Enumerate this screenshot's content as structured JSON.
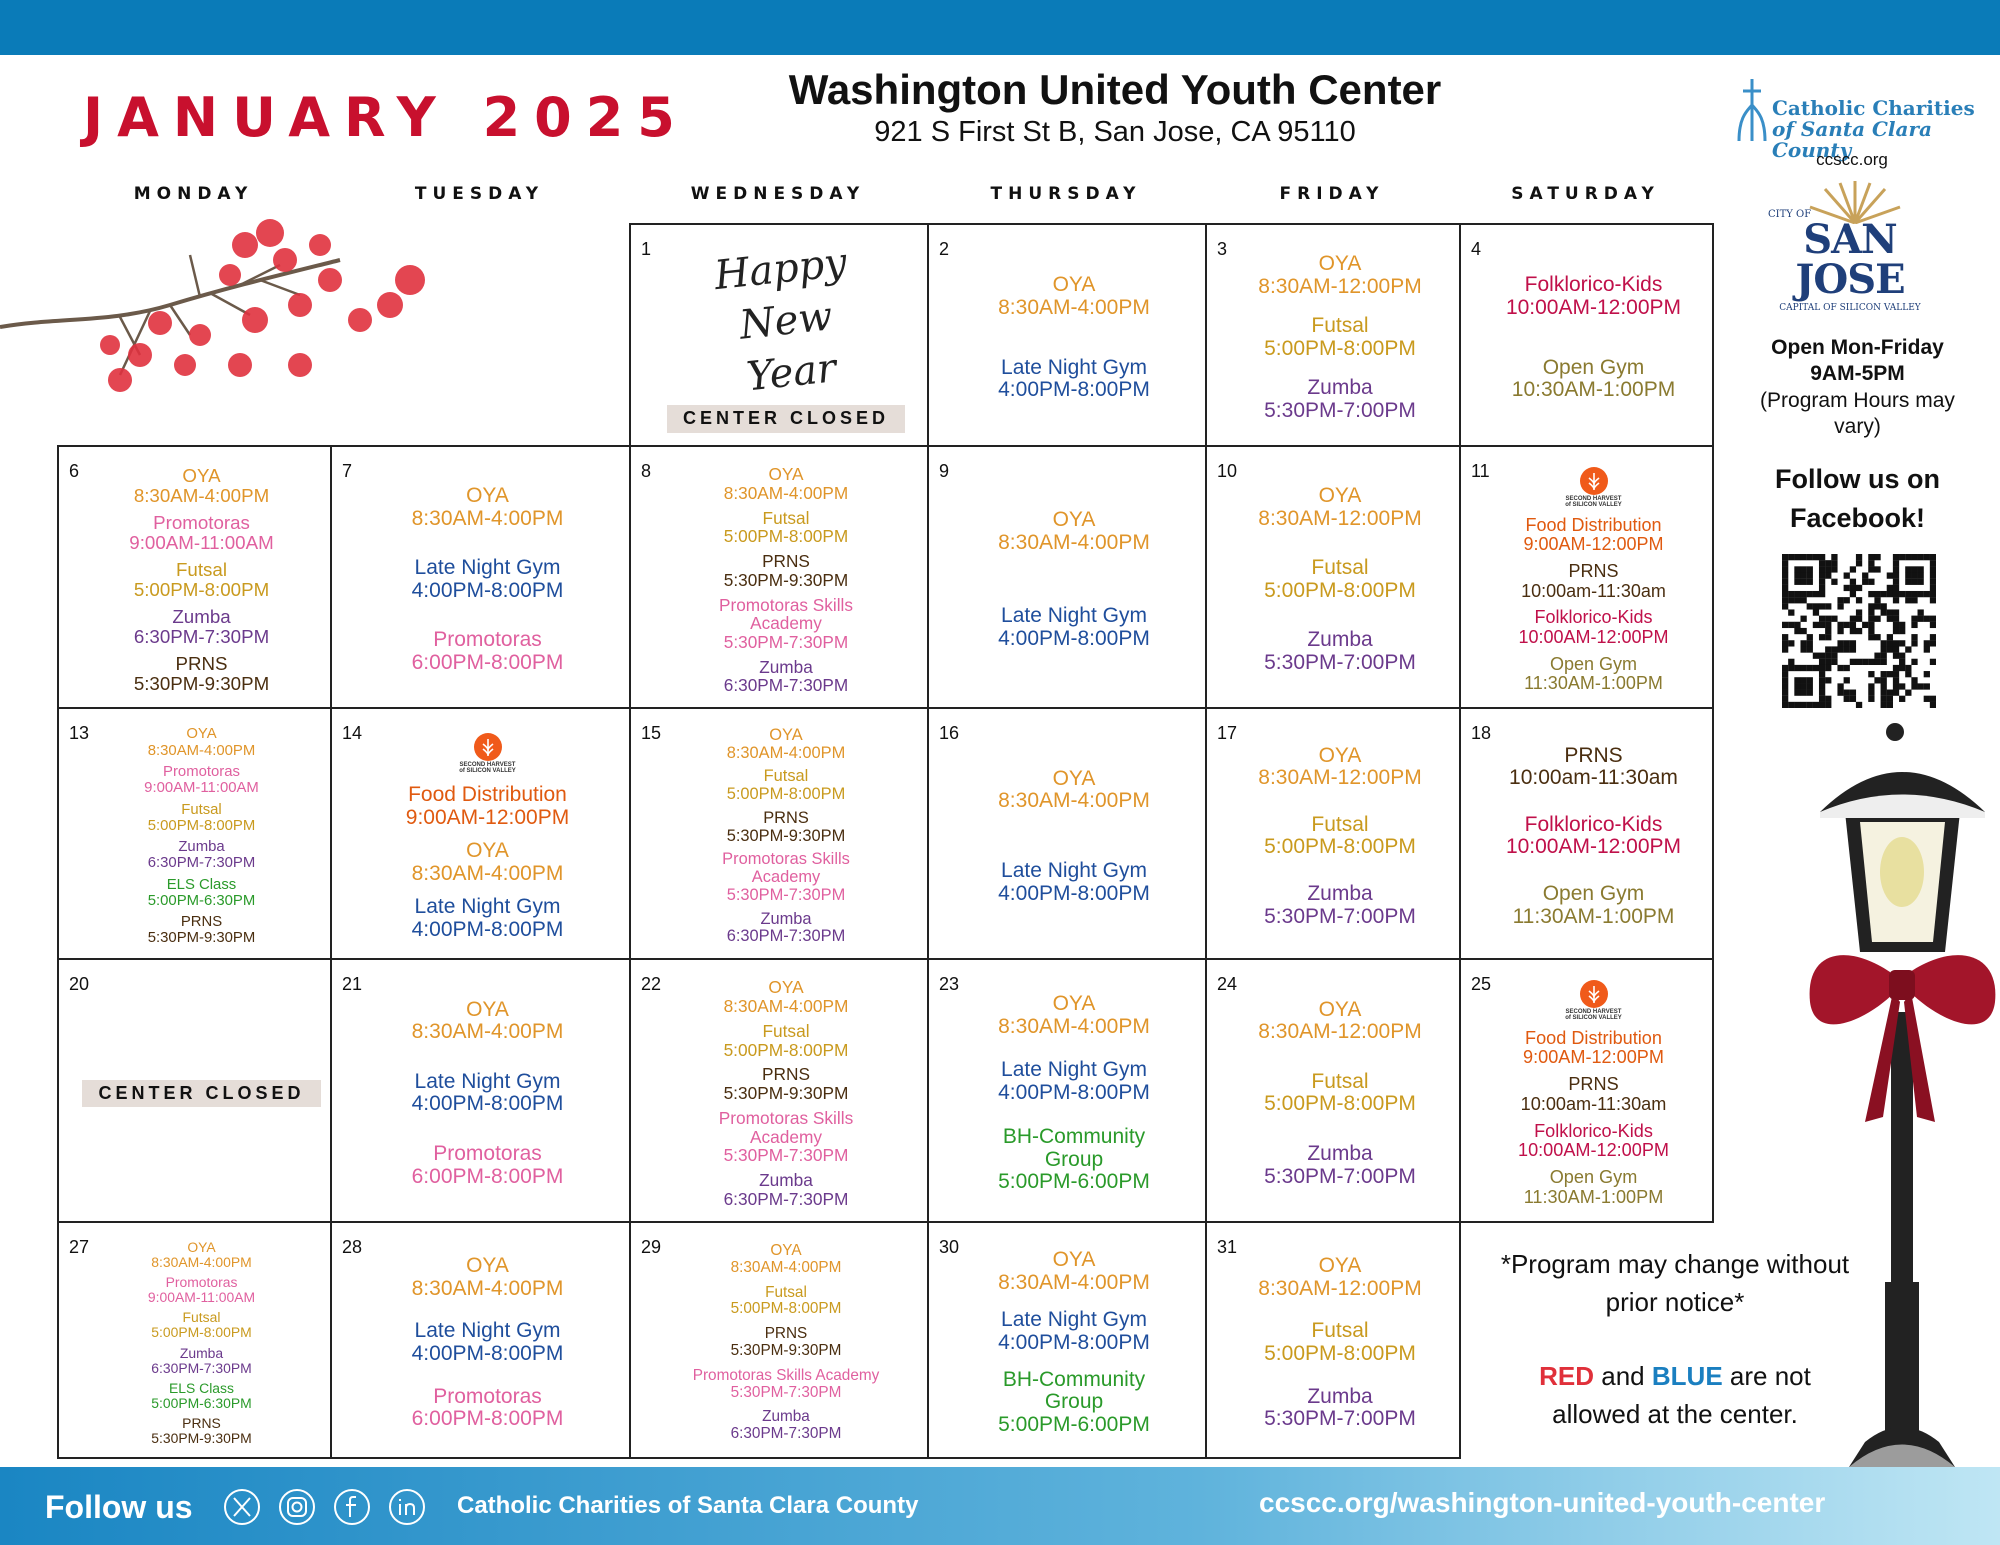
{
  "header": {
    "month_title": "JANUARY 2025",
    "center_name": "Washington United Youth Center",
    "address": "921 S First St B, San Jose, CA 95110"
  },
  "weekdays": [
    "MONDAY",
    "TUESDAY",
    "WEDNESDAY",
    "THURSDAY",
    "FRIDAY",
    "SATURDAY"
  ],
  "event_colors": {
    "OYA": "#e0952a",
    "Late Night Gym": "#1f4e9c",
    "Futsal": "#c99a1e",
    "Zumba": "#6b3a8c",
    "PRNS": "#4a2e10",
    "Promotoras": "#e0609f",
    "Promotoras Skills Academy": "#e0609f",
    "Folklorico-Kids": "#c0104a",
    "Open Gym": "#8a7a30",
    "Food Distribution": "#e05a10",
    "ELS Class": "#2a9a2a",
    "BH-Community Group": "#2a9a2a"
  },
  "second_harvest_logo": {
    "line1": "SECOND HARVEST",
    "line2": "of SILICON VALLEY"
  },
  "calendar": {
    "cells": [
      {
        "day": 1,
        "decoration": "Happy New Year",
        "status": "CENTER CLOSED",
        "events": []
      },
      {
        "day": 2,
        "events": [
          {
            "name": "OYA",
            "time": "8:30AM-4:00PM"
          },
          {
            "name": "Late Night Gym",
            "time": "4:00PM-8:00PM"
          }
        ]
      },
      {
        "day": 3,
        "events": [
          {
            "name": "OYA",
            "time": "8:30AM-12:00PM"
          },
          {
            "name": "Futsal",
            "time": "5:00PM-8:00PM"
          },
          {
            "name": "Zumba",
            "time": "5:30PM-7:00PM"
          }
        ]
      },
      {
        "day": 4,
        "events": [
          {
            "name": "Folklorico-Kids",
            "time": "10:00AM-12:00PM"
          },
          {
            "name": "Open Gym",
            "time": "10:30AM-1:00PM"
          }
        ]
      },
      {
        "day": 6,
        "events": [
          {
            "name": "OYA",
            "time": "8:30AM-4:00PM"
          },
          {
            "name": "Promotoras",
            "time": "9:00AM-11:00AM"
          },
          {
            "name": "Futsal",
            "time": "5:00PM-8:00PM"
          },
          {
            "name": "Zumba",
            "time": "6:30PM-7:30PM"
          },
          {
            "name": "PRNS",
            "time": "5:30PM-9:30PM"
          }
        ]
      },
      {
        "day": 7,
        "events": [
          {
            "name": "OYA",
            "time": "8:30AM-4:00PM"
          },
          {
            "name": "Late Night Gym",
            "time": "4:00PM-8:00PM"
          },
          {
            "name": "Promotoras",
            "time": "6:00PM-8:00PM"
          }
        ]
      },
      {
        "day": 8,
        "events": [
          {
            "name": "OYA",
            "time": "8:30AM-4:00PM"
          },
          {
            "name": "Futsal",
            "time": "5:00PM-8:00PM"
          },
          {
            "name": "PRNS",
            "time": "5:30PM-9:30PM"
          },
          {
            "name": "Promotoras Skills Academy",
            "time": "5:30PM-7:30PM"
          },
          {
            "name": "Zumba",
            "time": "6:30PM-7:30PM"
          }
        ]
      },
      {
        "day": 9,
        "events": [
          {
            "name": "OYA",
            "time": "8:30AM-4:00PM"
          },
          {
            "name": "Late Night Gym",
            "time": "4:00PM-8:00PM"
          }
        ]
      },
      {
        "day": 10,
        "events": [
          {
            "name": "OYA",
            "time": "8:30AM-12:00PM"
          },
          {
            "name": "Futsal",
            "time": "5:00PM-8:00PM"
          },
          {
            "name": "Zumba",
            "time": "5:30PM-7:00PM"
          }
        ]
      },
      {
        "day": 11,
        "logo": true,
        "events": [
          {
            "name": "Food Distribution",
            "time": "9:00AM-12:00PM"
          },
          {
            "name": "PRNS",
            "time": "10:00am-11:30am"
          },
          {
            "name": "Folklorico-Kids",
            "time": "10:00AM-12:00PM"
          },
          {
            "name": "Open Gym",
            "time": "11:30AM-1:00PM"
          }
        ]
      },
      {
        "day": 13,
        "events": [
          {
            "name": "OYA",
            "time": "8:30AM-4:00PM"
          },
          {
            "name": "Promotoras",
            "time": "9:00AM-11:00AM"
          },
          {
            "name": "Futsal",
            "time": "5:00PM-8:00PM"
          },
          {
            "name": "Zumba",
            "time": "6:30PM-7:30PM"
          },
          {
            "name": "ELS Class",
            "time": "5:00PM-6:30PM"
          },
          {
            "name": "PRNS",
            "time": "5:30PM-9:30PM"
          }
        ]
      },
      {
        "day": 14,
        "logo": true,
        "events": [
          {
            "name": "Food Distribution",
            "time": "9:00AM-12:00PM"
          },
          {
            "name": "OYA",
            "time": "8:30AM-4:00PM"
          },
          {
            "name": "Late Night Gym",
            "time": "4:00PM-8:00PM"
          }
        ]
      },
      {
        "day": 15,
        "events": [
          {
            "name": "OYA",
            "time": "8:30AM-4:00PM"
          },
          {
            "name": "Futsal",
            "time": "5:00PM-8:00PM"
          },
          {
            "name": "PRNS",
            "time": "5:30PM-9:30PM"
          },
          {
            "name": "Promotoras Skills Academy",
            "time": "5:30PM-7:30PM"
          },
          {
            "name": "Zumba",
            "time": "6:30PM-7:30PM"
          }
        ]
      },
      {
        "day": 16,
        "events": [
          {
            "name": "OYA",
            "time": "8:30AM-4:00PM"
          },
          {
            "name": "Late Night Gym",
            "time": "4:00PM-8:00PM"
          }
        ]
      },
      {
        "day": 17,
        "events": [
          {
            "name": "OYA",
            "time": "8:30AM-12:00PM"
          },
          {
            "name": "Futsal",
            "time": "5:00PM-8:00PM"
          },
          {
            "name": "Zumba",
            "time": "5:30PM-7:00PM"
          }
        ]
      },
      {
        "day": 18,
        "events": [
          {
            "name": "PRNS",
            "time": "10:00am-11:30am"
          },
          {
            "name": "Folklorico-Kids",
            "time": "10:00AM-12:00PM"
          },
          {
            "name": "Open Gym",
            "time": "11:30AM-1:00PM"
          }
        ]
      },
      {
        "day": 20,
        "status": "CENTER CLOSED",
        "events": []
      },
      {
        "day": 21,
        "events": [
          {
            "name": "OYA",
            "time": "8:30AM-4:00PM"
          },
          {
            "name": "Late Night Gym",
            "time": "4:00PM-8:00PM"
          },
          {
            "name": "Promotoras",
            "time": "6:00PM-8:00PM"
          }
        ]
      },
      {
        "day": 22,
        "events": [
          {
            "name": "OYA",
            "time": "8:30AM-4:00PM"
          },
          {
            "name": "Futsal",
            "time": "5:00PM-8:00PM"
          },
          {
            "name": "PRNS",
            "time": "5:30PM-9:30PM"
          },
          {
            "name": "Promotoras Skills Academy",
            "time": "5:30PM-7:30PM"
          },
          {
            "name": "Zumba",
            "time": "6:30PM-7:30PM"
          }
        ]
      },
      {
        "day": 23,
        "events": [
          {
            "name": "OYA",
            "time": "8:30AM-4:00PM"
          },
          {
            "name": "Late Night Gym",
            "time": "4:00PM-8:00PM"
          },
          {
            "name": "BH-Community Group",
            "time": "5:00PM-6:00PM"
          }
        ]
      },
      {
        "day": 24,
        "events": [
          {
            "name": "OYA",
            "time": "8:30AM-12:00PM"
          },
          {
            "name": "Futsal",
            "time": "5:00PM-8:00PM"
          },
          {
            "name": "Zumba",
            "time": "5:30PM-7:00PM"
          }
        ]
      },
      {
        "day": 25,
        "logo": true,
        "events": [
          {
            "name": "Food Distribution",
            "time": "9:00AM-12:00PM"
          },
          {
            "name": "PRNS",
            "time": "10:00am-11:30am"
          },
          {
            "name": "Folklorico-Kids",
            "time": "10:00AM-12:00PM"
          },
          {
            "name": "Open Gym",
            "time": "11:30AM-1:00PM"
          }
        ]
      },
      {
        "day": 27,
        "events": [
          {
            "name": "OYA",
            "time": "8:30AM-4:00PM"
          },
          {
            "name": "Promotoras",
            "time": "9:00AM-11:00AM"
          },
          {
            "name": "Futsal",
            "time": "5:00PM-8:00PM"
          },
          {
            "name": "Zumba",
            "time": "6:30PM-7:30PM"
          },
          {
            "name": "ELS Class",
            "time": "5:00PM-6:30PM"
          },
          {
            "name": "PRNS",
            "time": "5:30PM-9:30PM"
          }
        ]
      },
      {
        "day": 28,
        "events": [
          {
            "name": "OYA",
            "time": "8:30AM-4:00PM"
          },
          {
            "name": "Late Night Gym",
            "time": "4:00PM-8:00PM"
          },
          {
            "name": "Promotoras",
            "time": "6:00PM-8:00PM"
          }
        ]
      },
      {
        "day": 29,
        "events": [
          {
            "name": "OYA",
            "time": "8:30AM-4:00PM"
          },
          {
            "name": "Futsal",
            "time": "5:00PM-8:00PM"
          },
          {
            "name": "PRNS",
            "time": "5:30PM-9:30PM"
          },
          {
            "name": "Promotoras Skills Academy",
            "time": "5:30PM-7:30PM"
          },
          {
            "name": "Zumba",
            "time": "6:30PM-7:30PM"
          }
        ]
      },
      {
        "day": 30,
        "events": [
          {
            "name": "OYA",
            "time": "8:30AM-4:00PM"
          },
          {
            "name": "Late Night Gym",
            "time": "4:00PM-8:00PM"
          },
          {
            "name": "BH-Community Group",
            "time": "5:00PM-6:00PM"
          }
        ]
      },
      {
        "day": 31,
        "events": [
          {
            "name": "OYA",
            "time": "8:30AM-12:00PM"
          },
          {
            "name": "Futsal",
            "time": "5:00PM-8:00PM"
          },
          {
            "name": "Zumba",
            "time": "5:30PM-7:00PM"
          }
        ]
      }
    ]
  },
  "sidebar": {
    "cc_logo": {
      "line1": "Catholic Charities",
      "line2": "of Santa Clara County"
    },
    "cc_url": "ccscc.org",
    "sj_logo": {
      "city_of": "CITY OF",
      "name": "SAN JOSE",
      "tagline": "CAPITAL OF SILICON VALLEY"
    },
    "hours": {
      "line1": "Open Mon-Friday",
      "line2": "9AM-5PM",
      "line3": "(Program Hours may vary)"
    },
    "follow": "Follow us on Facebook!",
    "notice": "*Program may change without prior notice*",
    "colors_rule": {
      "red": "RED",
      "and": "and",
      "blue": "BLUE",
      "rest": "are not allowed at the center."
    }
  },
  "footer": {
    "follow": "Follow us",
    "org": "Catholic Charities of Santa Clara County",
    "url": "ccscc.org/washington-united-youth-center"
  }
}
